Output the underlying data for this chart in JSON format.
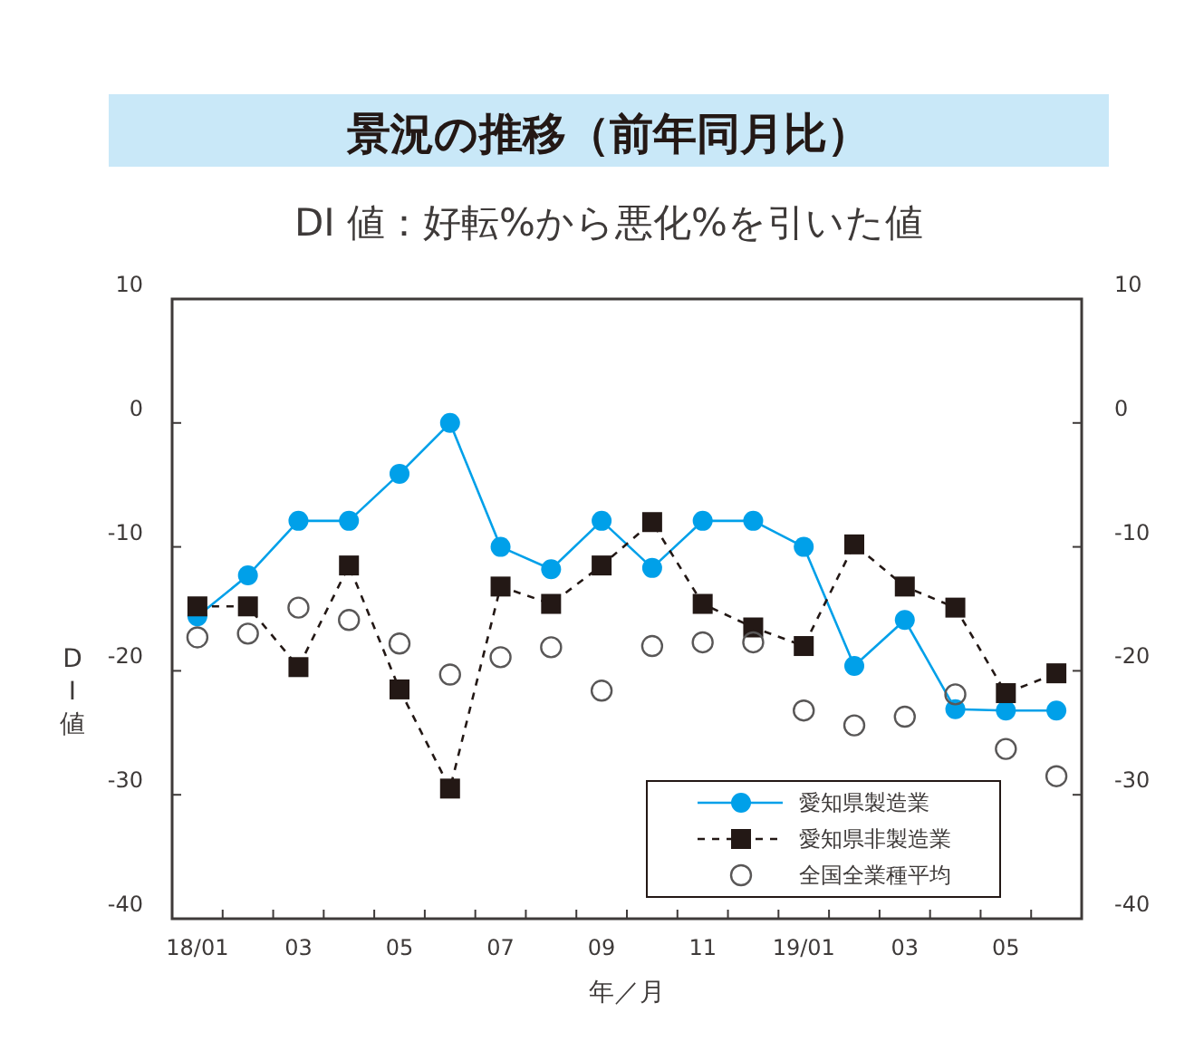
{
  "chart_data": {
    "type": "line",
    "title": "景況の推移（前年同月比）",
    "subtitle": "DI 値：好転%から悪化%を引いた値",
    "xlabel": "年／月",
    "ylabel": "DI値",
    "categories": [
      "18/01",
      null,
      "03",
      null,
      "05",
      null,
      "07",
      null,
      "09",
      null,
      "11",
      null,
      "19/01",
      null,
      "03",
      null,
      "05",
      null
    ],
    "series": [
      {
        "name": "愛知県製造業",
        "color": "#00a0e9",
        "marker": "circle",
        "line_style": "solid",
        "values": [
          -15.6,
          -12.3,
          -7.9,
          -7.9,
          -4.1,
          0,
          -10,
          -11.8,
          -7.9,
          -11.7,
          -7.9,
          -7.9,
          -10,
          -19.6,
          -15.9,
          -23.1,
          -23.2,
          -23.2
        ]
      },
      {
        "name": "愛知県非製造業",
        "color": "#231815",
        "marker": "square",
        "line_style": "dashed",
        "values": [
          -14.8,
          -14.8,
          -19.7,
          -11.5,
          -21.5,
          -29.5,
          -13.2,
          -14.6,
          -11.5,
          -8,
          -14.6,
          -16.5,
          -18,
          -9.8,
          -13.2,
          -14.9,
          -21.8,
          -20.2
        ]
      },
      {
        "name": "全国全業種平均",
        "color": "#595757",
        "type": "scatter",
        "marker": "circle_open",
        "values": [
          -17.3,
          -17,
          -14.9,
          -15.9,
          -17.8,
          -20.3,
          -18.9,
          -18.1,
          -21.6,
          -18,
          -17.7,
          -17.7,
          -23.2,
          -24.4,
          -23.7,
          -21.9,
          -26.3,
          -28.5
        ]
      }
    ],
    "ylim": [
      -40,
      10
    ],
    "yticks": [
      -40,
      -30,
      -20,
      -10,
      0,
      10
    ],
    "y2lim": [
      -40,
      10
    ],
    "y2ticks": [
      -40,
      -30,
      -20,
      -10,
      0,
      10
    ],
    "grid": false,
    "legend": "bottom right"
  }
}
